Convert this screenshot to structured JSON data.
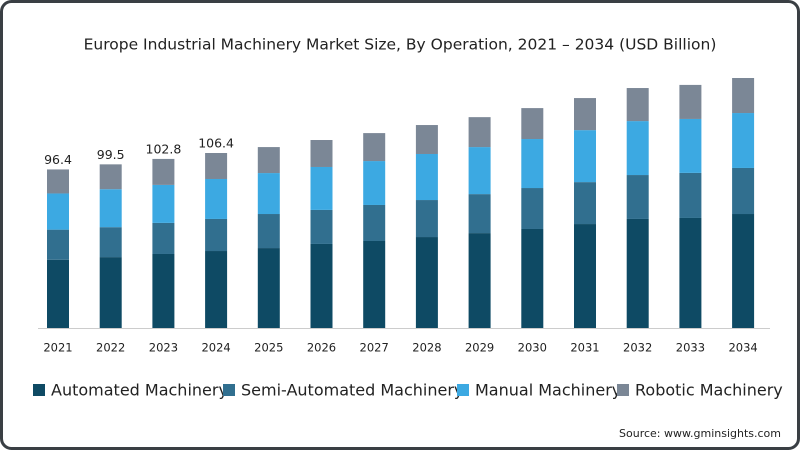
{
  "chart_data": {
    "type": "stacked-bar",
    "title": "Europe Industrial Machinery Market Size, By Operation, 2021 – 2034 (USD Billion)",
    "categories": [
      "2021",
      "2022",
      "2023",
      "2024",
      "2025",
      "2026",
      "2027",
      "2028",
      "2029",
      "2030",
      "2031",
      "2032",
      "2033",
      "2034"
    ],
    "series": [
      {
        "name": "Automated Machinery",
        "color": "#0e4a64",
        "values": [
          41.5,
          43.1,
          45.0,
          46.8,
          48.6,
          51.1,
          52.9,
          55.3,
          57.7,
          60.2,
          63.2,
          66.3,
          66.9,
          69.3
        ]
      },
      {
        "name": "Semi-Automated Machinery",
        "color": "#316f8f",
        "values": [
          18.3,
          18.2,
          18.9,
          19.5,
          20.7,
          20.7,
          21.9,
          22.5,
          23.7,
          24.9,
          25.5,
          26.7,
          27.4,
          28.0
        ]
      },
      {
        "name": "Manual Machinery",
        "color": "#3ca9e2",
        "values": [
          22.0,
          23.1,
          23.1,
          24.3,
          24.9,
          26.1,
          26.7,
          28.0,
          28.6,
          29.8,
          31.6,
          32.8,
          32.8,
          33.4
        ]
      },
      {
        "name": "Robotic Machinery",
        "color": "#7b8796",
        "values": [
          14.6,
          15.1,
          15.8,
          15.8,
          15.8,
          16.4,
          17.0,
          17.6,
          18.2,
          18.8,
          19.5,
          20.1,
          20.7,
          21.3
        ]
      }
    ],
    "total_labels": [
      96.4,
      99.5,
      102.8,
      106.4,
      null,
      null,
      null,
      null,
      null,
      null,
      null,
      null,
      null,
      null
    ],
    "source": "Source: www.gminsights.com"
  }
}
